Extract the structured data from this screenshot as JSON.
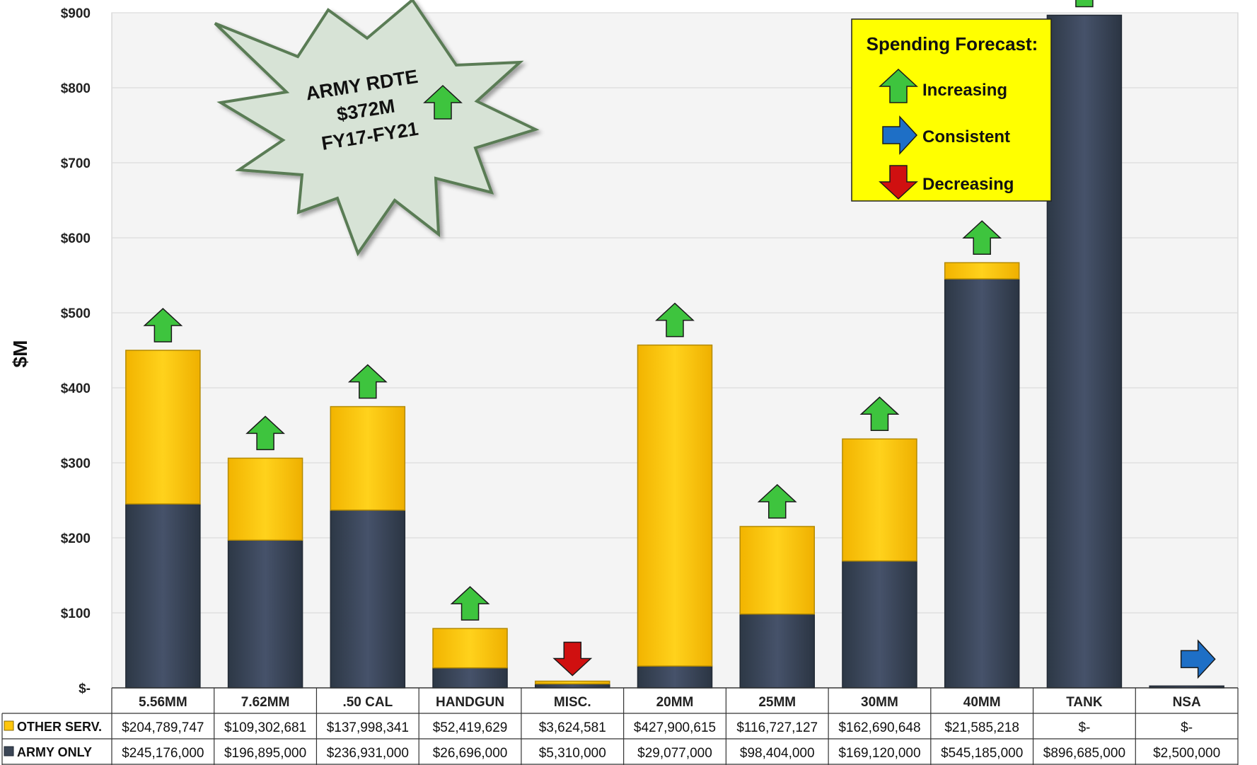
{
  "chart_data": {
    "type": "bar",
    "stacked": true,
    "ylabel": "$M",
    "ylim": [
      0,
      900
    ],
    "yticks": [
      0,
      100,
      200,
      300,
      400,
      500,
      600,
      700,
      800,
      900
    ],
    "ytick_labels": [
      "$-",
      "$100",
      "$200",
      "$300",
      "$400",
      "$500",
      "$600",
      "$700",
      "$800",
      "$900"
    ],
    "grid": true,
    "categories": [
      "5.56MM",
      "7.62MM",
      ".50 CAL",
      "HANDGUN",
      "MISC.",
      "20MM",
      "25MM",
      "30MM",
      "40MM",
      "TANK",
      "NSA"
    ],
    "series": [
      {
        "name": "ARMY ONLY",
        "color": "#3b4656",
        "values": [
          245.176,
          196.895,
          236.931,
          26.696,
          5.31,
          29.077,
          98.404,
          169.12,
          545.185,
          896.685,
          2.5
        ],
        "table_values": [
          "$245,176,000",
          "$196,895,000",
          "$236,931,000",
          "$26,696,000",
          "$5,310,000",
          "$29,077,000",
          "$98,404,000",
          "$169,120,000",
          "$545,185,000",
          "$896,685,000",
          "$2,500,000"
        ]
      },
      {
        "name": "OTHER SERV.",
        "color": "#ffc60b",
        "values": [
          204.789747,
          109.302681,
          137.998341,
          52.419629,
          3.624581,
          427.900615,
          116.727127,
          162.690648,
          21.585218,
          0,
          0
        ],
        "table_values": [
          "$204,789,747",
          "$109,302,681",
          "$137,998,341",
          "$52,419,629",
          "$3,624,581",
          "$427,900,615",
          "$116,727,127",
          "$162,690,648",
          "$21,585,218",
          "$-",
          "$-"
        ]
      }
    ],
    "forecast": [
      "increasing",
      "increasing",
      "increasing",
      "increasing",
      "decreasing",
      "increasing",
      "increasing",
      "increasing",
      "increasing",
      "increasing",
      "consistent"
    ],
    "forecast_colors": {
      "increasing": "#3ec43e",
      "consistent": "#1e6fc6",
      "decreasing": "#d01010"
    },
    "legend": {
      "title": "Spending Forecast:",
      "items": [
        {
          "label": "Increasing",
          "key": "increasing"
        },
        {
          "label": "Consistent",
          "key": "consistent"
        },
        {
          "label": "Decreasing",
          "key": "decreasing"
        }
      ]
    },
    "callout": {
      "lines": [
        "ARMY RDTE",
        "$372M",
        "FY17-FY21"
      ],
      "forecast": "increasing"
    }
  }
}
